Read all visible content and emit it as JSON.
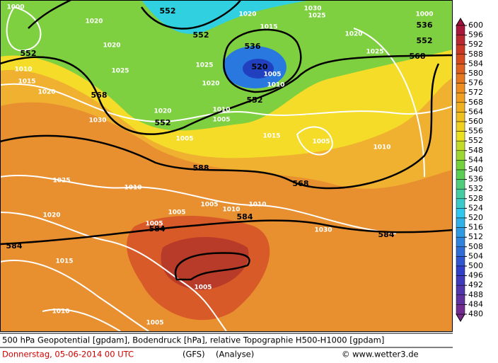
{
  "caption": "500 hPa Geopotential [gpdam], Bodendruck [hPa], relative Topographie H500-H1000 [gpdam]",
  "date": "Donnerstag, 05-06-2014  00 UTC",
  "model": "(GFS)",
  "analysis": "(Analyse)",
  "credit": "© www.wetter3.de",
  "colorbar": {
    "levels": [
      600,
      596,
      592,
      588,
      584,
      580,
      576,
      572,
      568,
      564,
      560,
      556,
      552,
      548,
      544,
      540,
      536,
      532,
      528,
      524,
      520,
      516,
      512,
      508,
      504,
      500,
      496,
      492,
      488,
      484,
      480
    ]
  },
  "geopotential_labels": [
    "552",
    "552",
    "552",
    "568",
    "552",
    "552",
    "536",
    "520",
    "588",
    "568",
    "584",
    "584",
    "584",
    "584",
    "568",
    "552",
    "536"
  ],
  "pressure_labels": [
    "1000",
    "1020",
    "1020",
    "1010",
    "1015",
    "1020",
    "1025",
    "1020",
    "1020",
    "1030",
    "1005",
    "1010",
    "1005",
    "1015",
    "1005",
    "1010",
    "1025",
    "1010",
    "1020",
    "1005",
    "1005",
    "1010",
    "1010",
    "1005",
    "1030",
    "1015",
    "1005",
    "1010",
    "1005",
    "1020",
    "1015",
    "1030",
    "1025",
    "1000",
    "1005",
    "1010",
    "1020",
    "1025",
    "1025"
  ]
}
